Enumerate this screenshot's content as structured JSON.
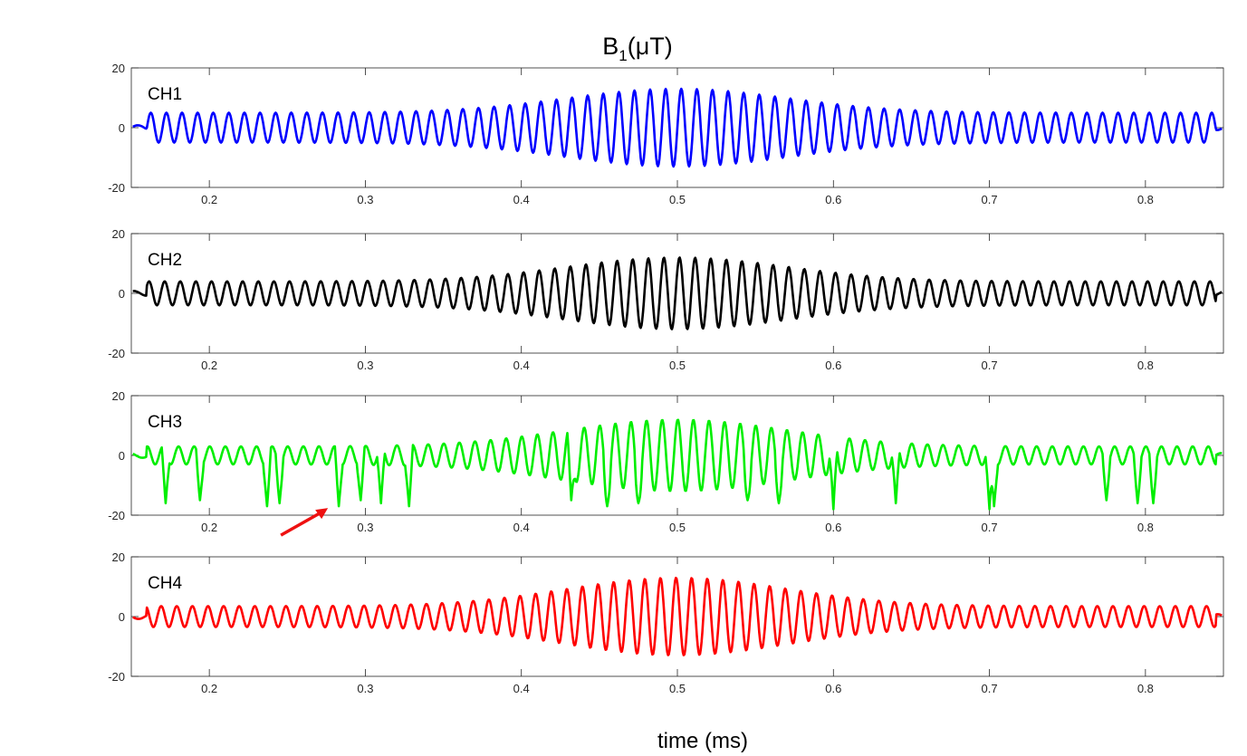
{
  "chart_data": {
    "type": "line",
    "title": "B",
    "title_sub": "1",
    "title_rest": "(μT)",
    "xlabel": "time (ms)",
    "xlim": [
      0.15,
      0.85
    ],
    "ylim": [
      -20,
      20
    ],
    "xticks": [
      0.2,
      0.3,
      0.4,
      0.5,
      0.6,
      0.7,
      0.8
    ],
    "xtick_labels": [
      "0.2",
      "0.3",
      "0.4",
      "0.5",
      "0.6",
      "0.7",
      "0.8"
    ],
    "yticks": [
      20,
      0,
      -20
    ],
    "ytick_labels": [
      "20",
      "0",
      "-20"
    ],
    "grid": false,
    "signal": {
      "carrier_cycles_per_ms": 100,
      "envelope_center_ms": 0.5,
      "envelope_width_ms": 0.1,
      "start_ms": 0.16,
      "end_ms": 0.845
    },
    "panels": [
      {
        "label": "CH1",
        "color": "#0000ff",
        "base_amplitude": 5,
        "peak_amplitude": 13,
        "spikes": []
      },
      {
        "label": "CH2",
        "color": "#000000",
        "base_amplitude": 4,
        "peak_amplitude": 12,
        "spikes": []
      },
      {
        "label": "CH3",
        "color": "#00ee00",
        "base_amplitude": 3,
        "peak_amplitude": 12,
        "spikes": [
          {
            "x": 0.172,
            "y": -16
          },
          {
            "x": 0.194,
            "y": -15
          },
          {
            "x": 0.237,
            "y": -17
          },
          {
            "x": 0.245,
            "y": -16
          },
          {
            "x": 0.283,
            "y": -17
          },
          {
            "x": 0.297,
            "y": -15
          },
          {
            "x": 0.31,
            "y": -16
          },
          {
            "x": 0.328,
            "y": -17
          },
          {
            "x": 0.432,
            "y": -15
          },
          {
            "x": 0.455,
            "y": -17
          },
          {
            "x": 0.475,
            "y": -16
          },
          {
            "x": 0.545,
            "y": -15
          },
          {
            "x": 0.565,
            "y": -16
          },
          {
            "x": 0.6,
            "y": -18
          },
          {
            "x": 0.64,
            "y": -16
          },
          {
            "x": 0.7,
            "y": -18
          },
          {
            "x": 0.703,
            "y": -17
          },
          {
            "x": 0.775,
            "y": -15
          },
          {
            "x": 0.795,
            "y": -16
          },
          {
            "x": 0.805,
            "y": -16
          }
        ],
        "annotation": "red-arrow",
        "annotation_target": {
          "x": 0.283,
          "y": -17
        }
      },
      {
        "label": "CH4",
        "color": "#ff0000",
        "base_amplitude": 3.5,
        "peak_amplitude": 13,
        "spikes": []
      }
    ]
  }
}
